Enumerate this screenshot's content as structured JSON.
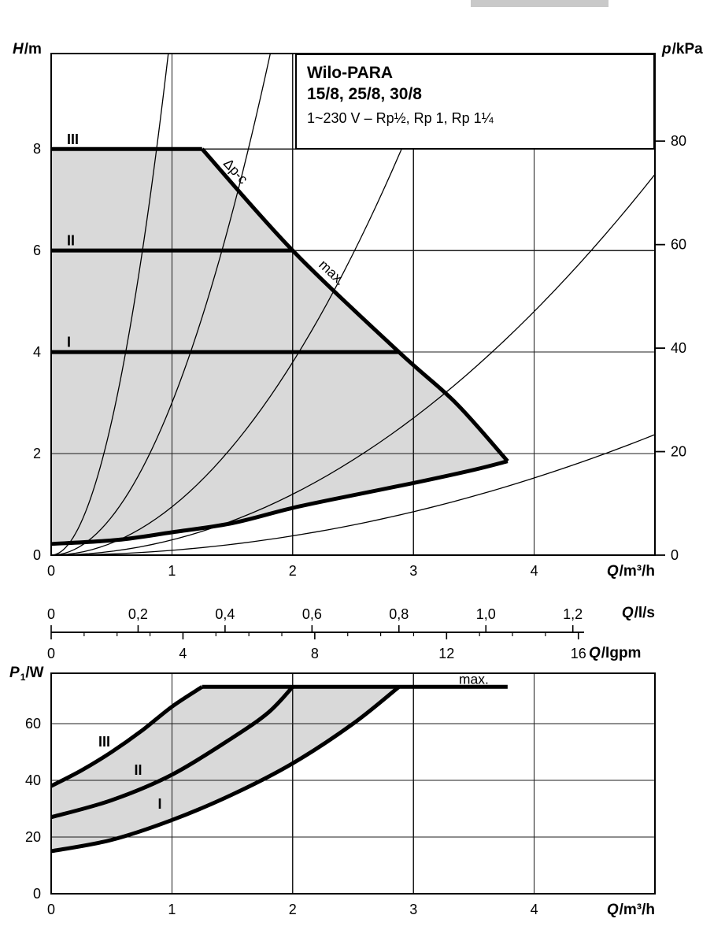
{
  "colors": {
    "shade": "#d9d9d9",
    "ink": "#000000",
    "grid": "#1c1c1c"
  },
  "chart_data": [
    {
      "type": "line",
      "name": "head-flow-chart",
      "title_box": {
        "line1": "Wilo-PARA",
        "line2": "15/8, 25/8, 30/8",
        "line3": "1~230 V – Rp½, Rp 1, Rp 1¼"
      },
      "xlabel": {
        "sym": "Q",
        "rest": "/m³/h"
      },
      "ylabel_left": {
        "sym": "H",
        "rest": "/m"
      },
      "ylabel_right": {
        "sym": "p",
        "rest": "/kPa"
      },
      "xlim": [
        0,
        5
      ],
      "ylim": [
        0,
        9.88
      ],
      "x_ticks": [
        0,
        1,
        2,
        3,
        4
      ],
      "y_ticks": [
        0,
        2,
        4,
        6,
        8
      ],
      "right_ticks": {
        "unit": "kPa",
        "values": [
          0,
          20,
          40,
          60,
          80
        ],
        "m_per_unit": 0.10194
      },
      "grid": true,
      "speed_curves": [
        {
          "name": "III",
          "head_m": 8,
          "q_end": 1.25
        },
        {
          "name": "II",
          "head_m": 6,
          "q_end": 2.0
        },
        {
          "name": "I",
          "head_m": 4,
          "q_end": 2.88
        }
      ],
      "max_curve": [
        [
          1.25,
          8
        ],
        [
          2.0,
          6
        ],
        [
          2.88,
          4
        ],
        [
          3.35,
          3.0
        ],
        [
          3.78,
          1.85
        ]
      ],
      "min_curve": [
        [
          0,
          0.22
        ],
        [
          0.55,
          0.3
        ],
        [
          1.0,
          0.45
        ],
        [
          1.5,
          0.63
        ],
        [
          2.0,
          0.93
        ],
        [
          2.5,
          1.18
        ],
        [
          3.0,
          1.42
        ],
        [
          3.5,
          1.68
        ],
        [
          3.78,
          1.85
        ]
      ],
      "system_curves_k": [
        10.5,
        3.0,
        0.95,
        0.3,
        0.095
      ],
      "curve_labels": [
        {
          "text": "Δp-c",
          "q": 1.5,
          "h": 7.5,
          "rotate": 47
        },
        {
          "text": "max.",
          "q": 2.3,
          "h": 5.5,
          "rotate": 43
        }
      ],
      "speed_labels": [
        {
          "text": "III",
          "q": 0.13,
          "h": 8.1
        },
        {
          "text": "II",
          "q": 0.13,
          "h": 6.1
        },
        {
          "text": "I",
          "q": 0.13,
          "h": 4.1
        }
      ]
    },
    {
      "type": "line",
      "name": "power-chart",
      "xlabel": {
        "sym": "Q",
        "rest": "/m³/h"
      },
      "ylabel": {
        "sym": "P",
        "sub": "1",
        "rest": "/W"
      },
      "xlim": [
        0,
        5
      ],
      "ylim": [
        0,
        77.8
      ],
      "x_ticks": [
        0,
        1,
        2,
        3,
        4
      ],
      "y_ticks": [
        0,
        20,
        40,
        60
      ],
      "grid": true,
      "curves": [
        {
          "name": "III",
          "points": [
            [
              0,
              38
            ],
            [
              0.25,
              43.5
            ],
            [
              0.5,
              50
            ],
            [
              0.75,
              57.5
            ],
            [
              1.0,
              66
            ],
            [
              1.25,
              73
            ]
          ]
        },
        {
          "name": "II",
          "points": [
            [
              0,
              27
            ],
            [
              0.5,
              33
            ],
            [
              1.0,
              42
            ],
            [
              1.5,
              55
            ],
            [
              1.8,
              64
            ],
            [
              2.0,
              73
            ]
          ]
        },
        {
          "name": "I",
          "points": [
            [
              0,
              15
            ],
            [
              0.5,
              19
            ],
            [
              1.0,
              26
            ],
            [
              1.5,
              35
            ],
            [
              2.0,
              46
            ],
            [
              2.5,
              60
            ],
            [
              2.88,
              73
            ]
          ]
        },
        {
          "name": "max",
          "points": [
            [
              1.25,
              73
            ],
            [
              3.78,
              73
            ]
          ]
        }
      ],
      "labels": [
        {
          "text": "III",
          "q": 0.44,
          "p": 52,
          "bold": true
        },
        {
          "text": "II",
          "q": 0.72,
          "p": 42,
          "bold": true
        },
        {
          "text": "I",
          "q": 0.9,
          "p": 30,
          "bold": true
        },
        {
          "text": "max.",
          "q": 3.5,
          "p": 74,
          "bold": false
        }
      ]
    }
  ],
  "flow_scales": {
    "ls": {
      "label": {
        "sym": "Q",
        "rest": "/l/s"
      },
      "ticks": [
        {
          "label": "0",
          "m3h": 0
        },
        {
          "label": "0,2",
          "m3h": 0.72
        },
        {
          "label": "0,4",
          "m3h": 1.44
        },
        {
          "label": "0,6",
          "m3h": 2.16
        },
        {
          "label": "0,8",
          "m3h": 2.88
        },
        {
          "label": "1,0",
          "m3h": 3.6
        },
        {
          "label": "1,2",
          "m3h": 4.32
        }
      ]
    },
    "igpm": {
      "label": {
        "sym": "Q",
        "rest": "/Igpm"
      },
      "ticks": [
        {
          "label": "0",
          "m3h": 0
        },
        {
          "label": "4",
          "m3h": 1.0915
        },
        {
          "label": "8",
          "m3h": 2.183
        },
        {
          "label": "12",
          "m3h": 3.2745
        },
        {
          "label": "16",
          "m3h": 4.366
        }
      ],
      "minor_step_m3h": 0.272875,
      "minor_count": 15
    }
  }
}
